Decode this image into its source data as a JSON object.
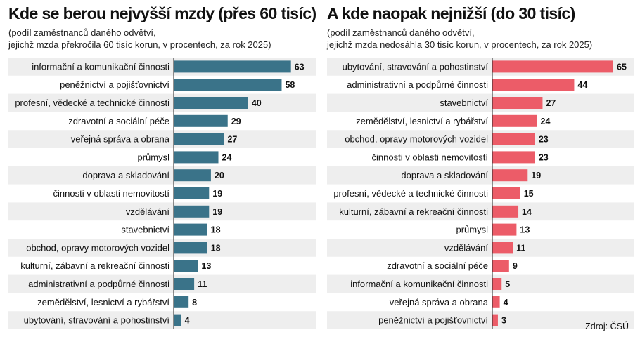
{
  "source": "Zdroj: ČSÚ",
  "colors": {
    "left_bars": "#3a7389",
    "right_bars": "#ec5c68",
    "row_stripe": "#eeeeee",
    "baseline": "#222222"
  },
  "chart_data": [
    {
      "type": "bar",
      "orientation": "horizontal",
      "title": "Kde se berou nejvyšší mzdy (přes 60 tisíc)",
      "subtitle": [
        "(podíl zaměstnanců daného odvětví,",
        "jejichž mzda překročila 60 tisíc korun, v procentech, za rok 2025)"
      ],
      "xlim": [
        0,
        65
      ],
      "categories": [
        "informační a komunikační činnosti",
        "peněžnictví a pojišťovnictví",
        "profesní, vědecké a technické činnosti",
        "zdravotní a sociální péče",
        "veřejná správa a obrana",
        "průmysl",
        "doprava a skladování",
        "činnosti v oblasti nemovitostí",
        "vzdělávání",
        "stavebnictví",
        "obchod, opravy motorových vozidel",
        "kulturní, zábavní a rekreační činnosti",
        "administrativní a podpůrné činnosti",
        "zemědělství, lesnictví a rybářství",
        "ubytování, stravování a pohostinství"
      ],
      "values": [
        63,
        58,
        40,
        29,
        27,
        24,
        20,
        19,
        19,
        18,
        18,
        13,
        11,
        8,
        4
      ]
    },
    {
      "type": "bar",
      "orientation": "horizontal",
      "title": "A kde naopak nejnižší (do 30 tisíc)",
      "subtitle": [
        "(podíl zaměstnanců daného odvětví,",
        "jejichž mzda nedosáhla 30 tisíc korun, v procentech, za rok 2025)"
      ],
      "xlim": [
        0,
        65
      ],
      "categories": [
        "ubytování, stravování a pohostinství",
        "administrativní a podpůrné činnosti",
        "stavebnictví",
        "zemědělství, lesnictví a rybářství",
        "obchod, opravy motorových vozidel",
        "činnosti v oblasti nemovitostí",
        "doprava a skladování",
        "profesní, vědecké a technické činnosti",
        "kulturní, zábavní a rekreační činnosti",
        "průmysl",
        "vzdělávání",
        "zdravotní a sociální péče",
        "informační a komunikační činnosti",
        "veřejná správa a obrana",
        "peněžnictví a pojišťovnictví"
      ],
      "values": [
        65,
        44,
        27,
        24,
        23,
        23,
        19,
        15,
        14,
        13,
        11,
        9,
        5,
        4,
        3
      ]
    }
  ]
}
